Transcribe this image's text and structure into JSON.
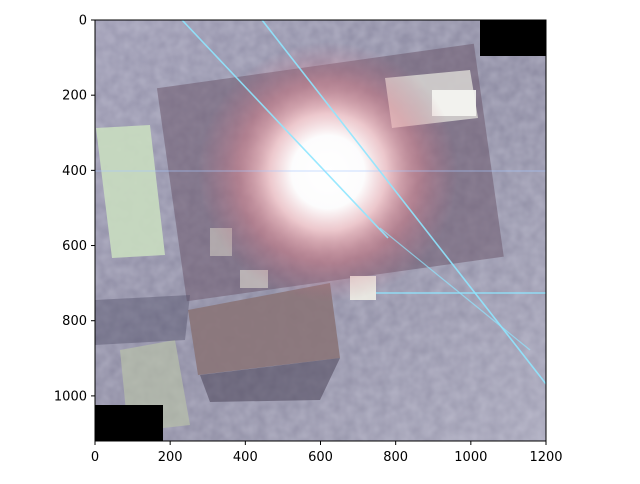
{
  "figure": {
    "type": "image",
    "description_colors": {
      "ground": "#8f8ea6",
      "flare_core": "#ffffff",
      "flare_glow": "#ff9aa0",
      "mask": "#000000",
      "line": "#8fe6ff"
    }
  },
  "chart_data": {
    "type": "image",
    "title": "",
    "xlabel": "",
    "ylabel": "",
    "xlim": [
      0,
      1200
    ],
    "ylim": [
      1120,
      0
    ],
    "x_ticks": [
      0,
      200,
      400,
      600,
      800,
      1000,
      1200
    ],
    "y_ticks": [
      0,
      200,
      400,
      600,
      800,
      1000
    ],
    "x_tick_labels": [
      "0",
      "200",
      "400",
      "600",
      "800",
      "1000",
      "1200"
    ],
    "y_tick_labels": [
      "0",
      "200",
      "400",
      "600",
      "800",
      "1000"
    ],
    "grid": false,
    "masked_regions": [
      {
        "x": [
          1020,
          1200
        ],
        "y": [
          0,
          95
        ]
      },
      {
        "x": [
          0,
          180
        ],
        "y": [
          1025,
          1120
        ]
      }
    ],
    "flare_center": {
      "x": 620,
      "y": 410
    }
  }
}
